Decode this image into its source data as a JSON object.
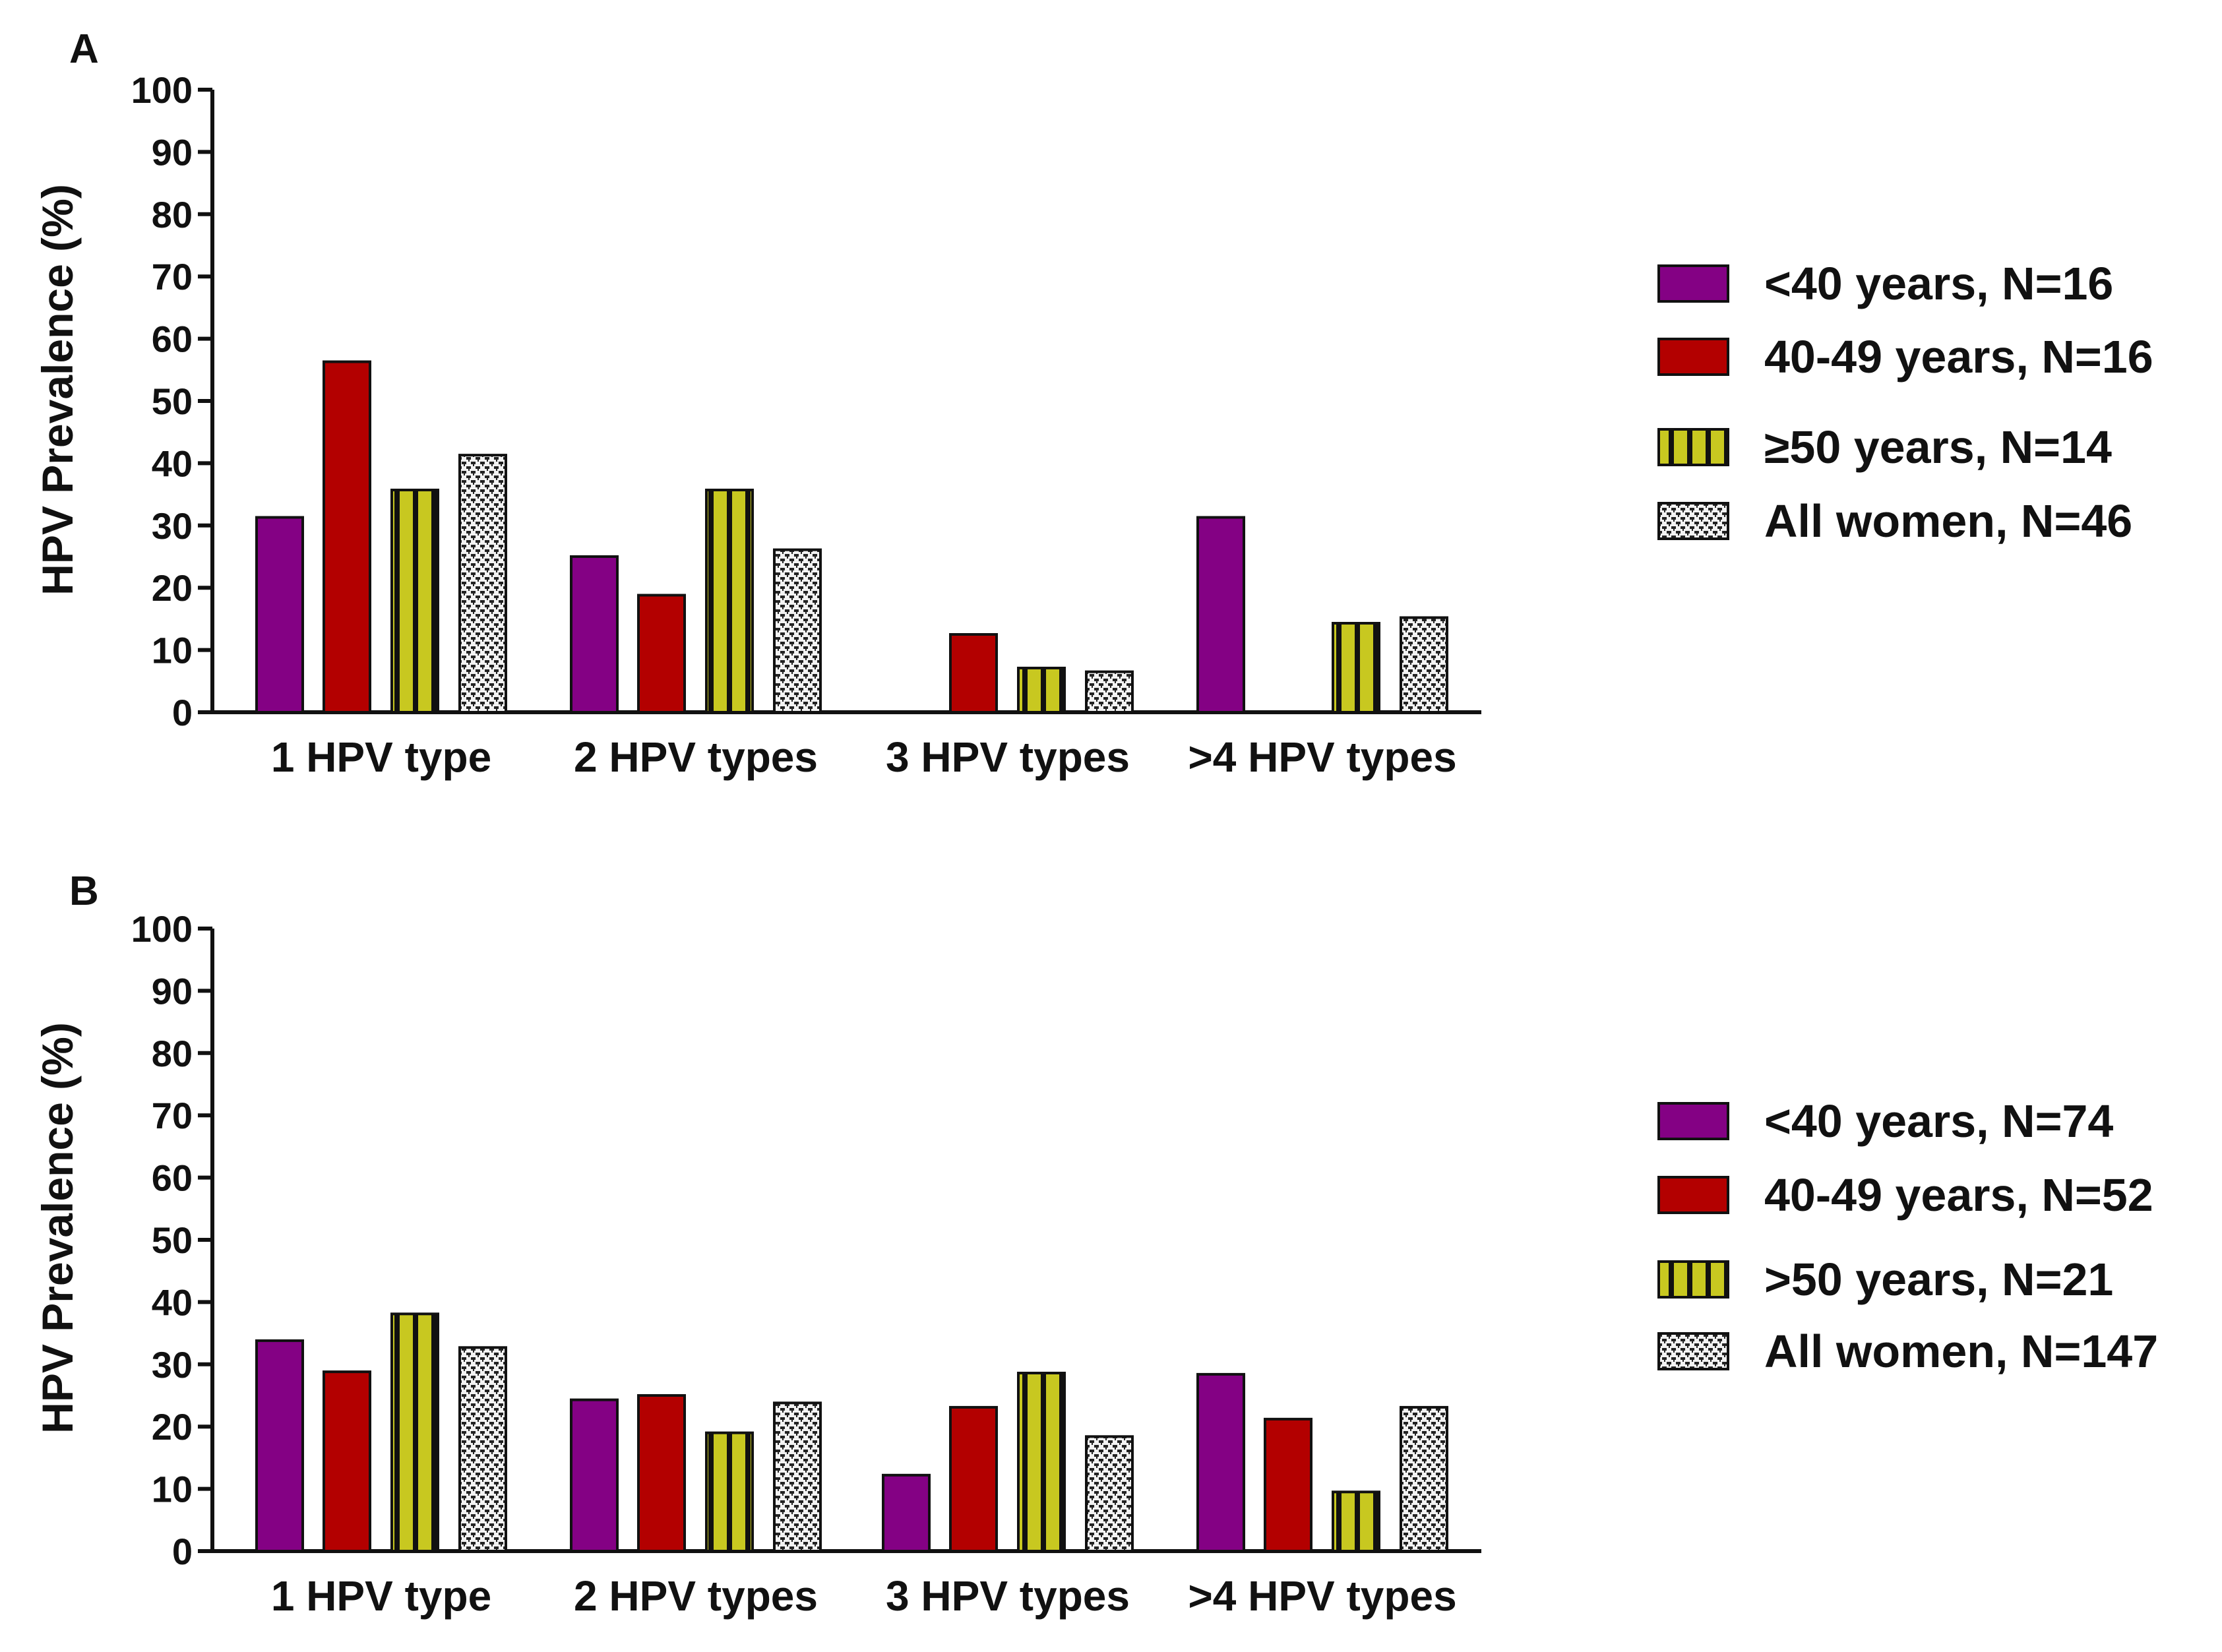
{
  "figure": {
    "panels": [
      "A",
      "B"
    ]
  },
  "colors": {
    "under40": "#840184",
    "age40to49": "#B30000",
    "over50": "#C8C820",
    "over50_stripe": "#111111",
    "all": "#F2F2F2",
    "all_pattern": "#222222",
    "axis": "#111111"
  },
  "chart_data": [
    {
      "type": "bar",
      "panel": "A",
      "categories": [
        "1 HPV type",
        "2 HPV types",
        "3 HPV types",
        ">4 HPV types"
      ],
      "ylabel": "HPV Prevalence (%)",
      "xlabel": "",
      "ylim": [
        0,
        100
      ],
      "yticks": [
        0,
        10,
        20,
        30,
        40,
        50,
        60,
        70,
        80,
        90,
        100
      ],
      "legend_position": "right",
      "series": [
        {
          "name": "<40 years, N=16",
          "key": "under40",
          "values": [
            31.3,
            25.0,
            0,
            31.3
          ]
        },
        {
          "name": "40-49 years, N=16",
          "key": "age40to49",
          "values": [
            56.3,
            18.8,
            12.5,
            0
          ]
        },
        {
          "name": "≥50 years, N=14",
          "key": "over50",
          "values": [
            35.7,
            35.7,
            7.1,
            14.3
          ]
        },
        {
          "name": "All women, N=46",
          "key": "all",
          "values": [
            41.3,
            26.1,
            6.5,
            15.2
          ]
        }
      ]
    },
    {
      "type": "bar",
      "panel": "B",
      "categories": [
        "1 HPV type",
        "2 HPV types",
        "3 HPV types",
        ">4 HPV types"
      ],
      "ylabel": "HPV Prevalence (%)",
      "xlabel": "",
      "ylim": [
        0,
        100
      ],
      "yticks": [
        0,
        10,
        20,
        30,
        40,
        50,
        60,
        70,
        80,
        90,
        100
      ],
      "legend_position": "right",
      "series": [
        {
          "name": "<40 years, N=74",
          "key": "under40",
          "values": [
            33.8,
            24.3,
            12.2,
            28.4
          ]
        },
        {
          "name": "40-49 years, N=52",
          "key": "age40to49",
          "values": [
            28.8,
            25.0,
            23.1,
            21.2
          ]
        },
        {
          "name": ">50 years, N=21",
          "key": "over50",
          "values": [
            38.1,
            19.0,
            28.6,
            9.5
          ]
        },
        {
          "name": "All women, N=147",
          "key": "all",
          "values": [
            32.7,
            23.8,
            18.4,
            23.1
          ]
        }
      ]
    }
  ]
}
